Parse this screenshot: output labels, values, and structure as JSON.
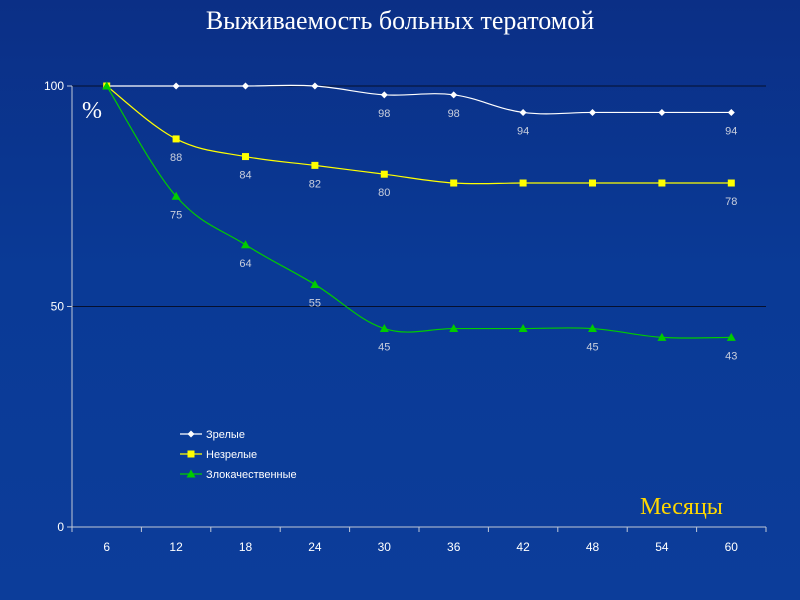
{
  "chart_data": {
    "type": "line",
    "title": "Выживаемость больных тератомой",
    "ylabel": "%",
    "xlabel": "Месяцы",
    "categories": [
      "6",
      "12",
      "18",
      "24",
      "30",
      "36",
      "42",
      "48",
      "54",
      "60"
    ],
    "ylim": [
      0,
      100
    ],
    "yticks": [
      0,
      50,
      100
    ],
    "grid": true,
    "legend_position": "bottom-left",
    "series": [
      {
        "name": "Зрелые",
        "color": "#ffffff",
        "marker": "diamond",
        "values": [
          100,
          100,
          100,
          100,
          98,
          98,
          94,
          94,
          94,
          94
        ],
        "labels": [
          "",
          "",
          "",
          "",
          "98",
          "98",
          "94",
          "",
          "",
          "94"
        ]
      },
      {
        "name": "Незрелые",
        "color": "#ffff00",
        "marker": "square",
        "values": [
          100,
          88,
          84,
          82,
          80,
          78,
          78,
          78,
          78,
          78
        ],
        "labels": [
          "",
          "88",
          "84",
          "82",
          "80",
          "",
          "",
          "",
          "",
          "78"
        ]
      },
      {
        "name": "Злокачественные",
        "color": "#00cc00",
        "marker": "triangle",
        "values": [
          100,
          75,
          64,
          55,
          45,
          45,
          45,
          45,
          43,
          43
        ],
        "labels": [
          "",
          "75",
          "64",
          "55",
          "45",
          "",
          "",
          "45",
          "",
          "43"
        ]
      }
    ]
  }
}
